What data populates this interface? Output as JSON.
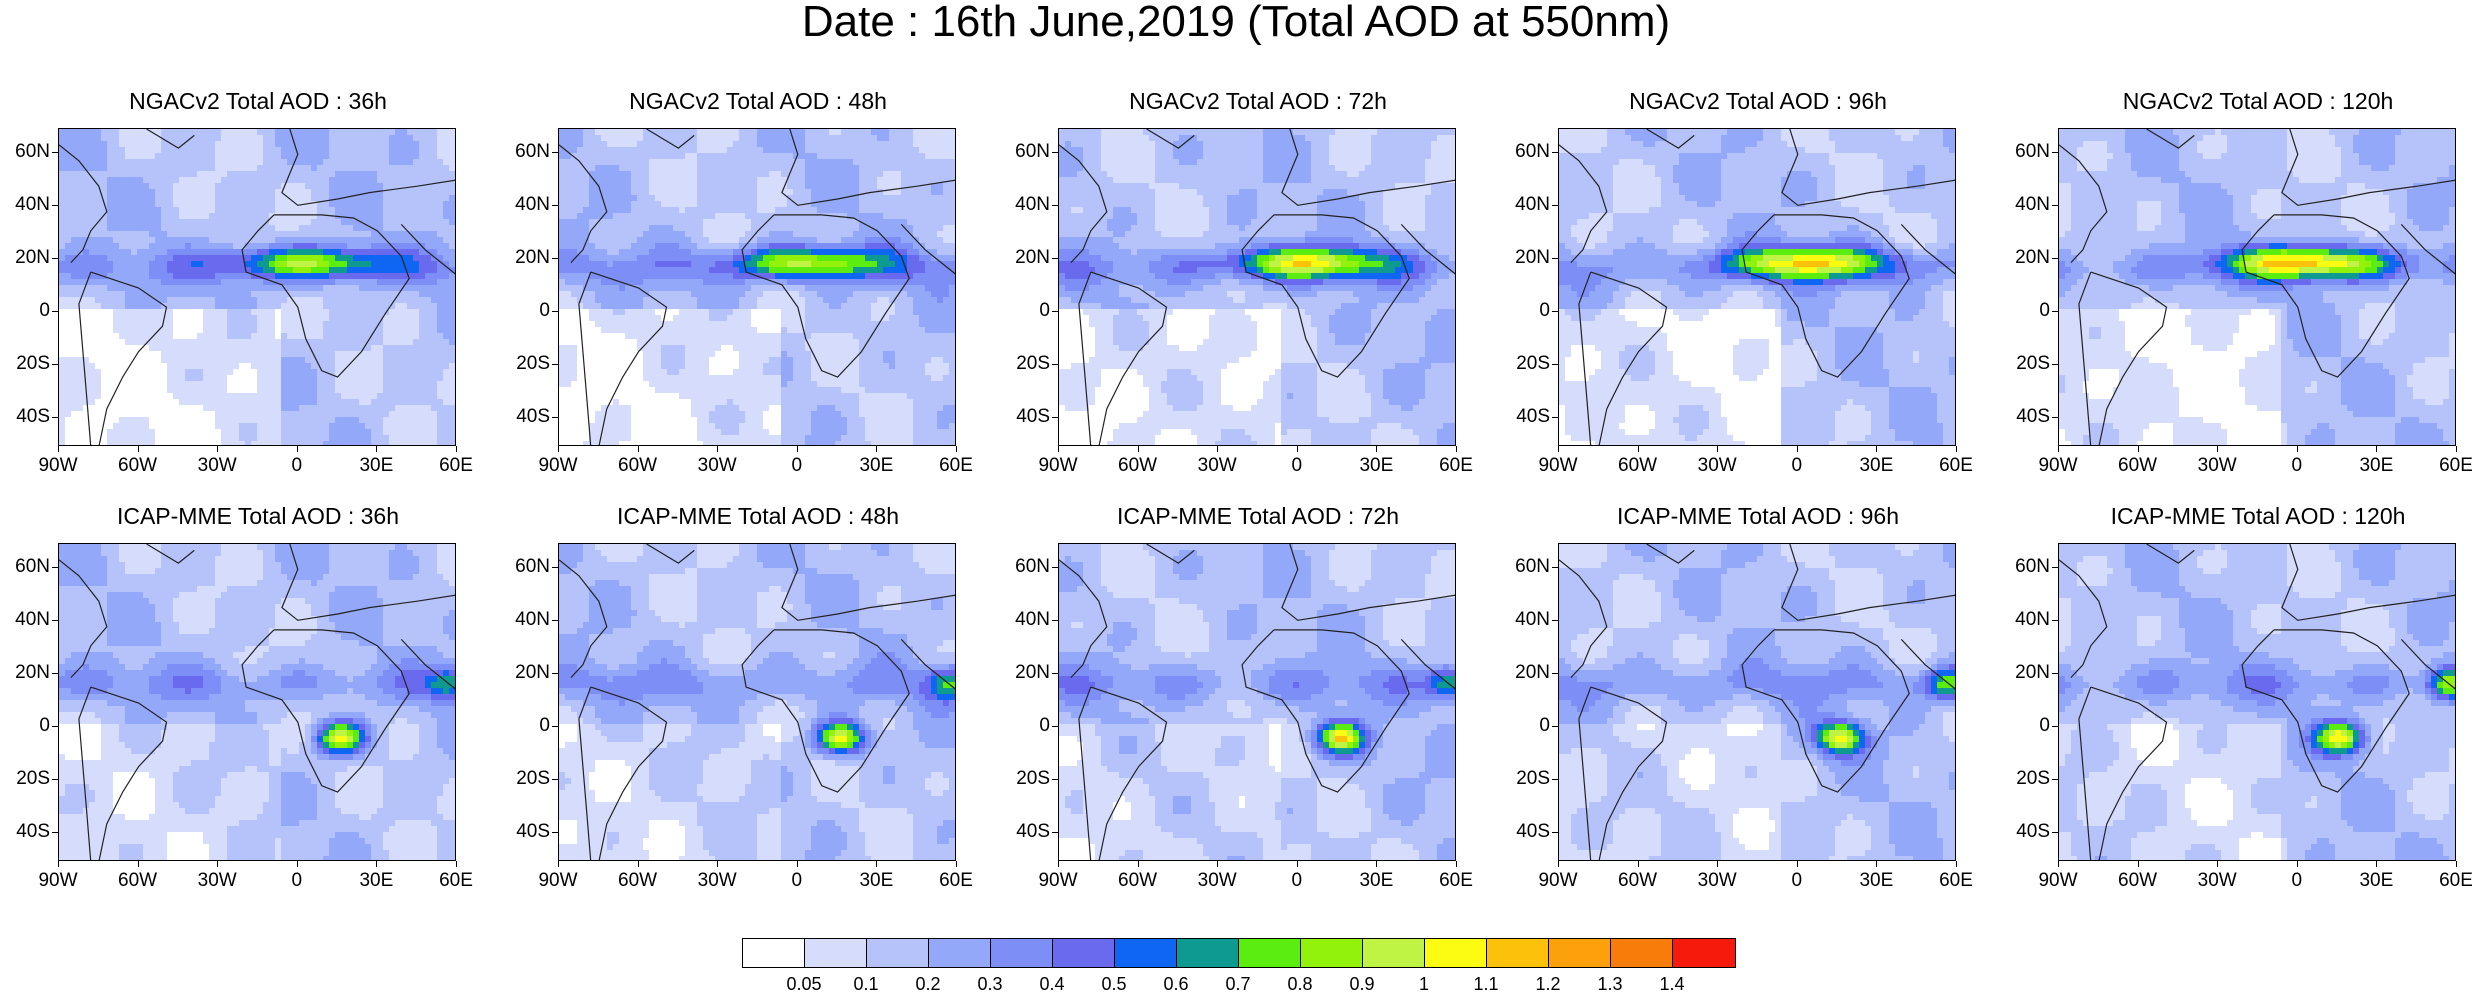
{
  "title": "Date : 16th June,2019 (Total AOD at 550nm)",
  "panels": [
    {
      "title": "NGACv2 Total AOD : 36h",
      "model": "NGAC",
      "hour": 36
    },
    {
      "title": "NGACv2 Total AOD : 48h",
      "model": "NGAC",
      "hour": 48
    },
    {
      "title": "NGACv2 Total AOD : 72h",
      "model": "NGAC",
      "hour": 72
    },
    {
      "title": "NGACv2 Total AOD : 96h",
      "model": "NGAC",
      "hour": 96
    },
    {
      "title": "NGACv2 Total AOD : 120h",
      "model": "NGAC",
      "hour": 120
    },
    {
      "title": "ICAP-MME Total AOD : 36h",
      "model": "ICAP",
      "hour": 36
    },
    {
      "title": "ICAP-MME Total AOD : 48h",
      "model": "ICAP",
      "hour": 48
    },
    {
      "title": "ICAP-MME Total AOD : 72h",
      "model": "ICAP",
      "hour": 72
    },
    {
      "title": "ICAP-MME Total AOD : 96h",
      "model": "ICAP",
      "hour": 96
    },
    {
      "title": "ICAP-MME Total AOD : 120h",
      "model": "ICAP",
      "hour": 120
    }
  ],
  "lat_ticks": [
    "60N",
    "40N",
    "20N",
    "0",
    "20S",
    "40S"
  ],
  "lon_ticks": [
    "90W",
    "60W",
    "30W",
    "0",
    "30E",
    "60E"
  ],
  "colorbar": {
    "colors": [
      "#ffffff",
      "#d5dcfc",
      "#b6c3fa",
      "#94a8fa",
      "#7d8ff6",
      "#6a6aef",
      "#0f66f2",
      "#0f9a91",
      "#5ced10",
      "#93f20c",
      "#bff445",
      "#fcfc12",
      "#fcc10b",
      "#fca00c",
      "#f87c0a",
      "#f51a0c"
    ],
    "labels": [
      "0.05",
      "0.1",
      "0.2",
      "0.3",
      "0.4",
      "0.5",
      "0.6",
      "0.7",
      "0.8",
      "0.9",
      "1",
      "1.1",
      "1.2",
      "1.3",
      "1.4"
    ]
  }
}
